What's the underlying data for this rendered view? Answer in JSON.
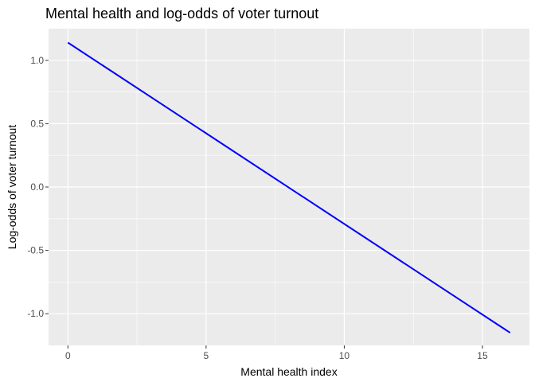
{
  "chart_data": {
    "type": "line",
    "title": "Mental health and log-odds of voter turnout",
    "xlabel": "Mental health index",
    "ylabel": "Log-odds of voter turnout",
    "xlim": [
      -0.7,
      16.7
    ],
    "ylim": [
      -1.25,
      1.25
    ],
    "x_ticks": [
      0,
      5,
      10,
      15
    ],
    "x_tick_labels": [
      "0",
      "5",
      "10",
      "15"
    ],
    "y_ticks": [
      1.0,
      0.5,
      0.0,
      -0.5,
      -1.0
    ],
    "y_tick_labels": [
      "1.0",
      "0.5",
      "0.0",
      "-0.5",
      "-1.0"
    ],
    "grid": true,
    "panel_color": "#ebebeb",
    "grid_color": "#ffffff",
    "series": [
      {
        "color": "#0000ff",
        "x": [
          0,
          16
        ],
        "y": [
          1.14,
          -1.15
        ]
      }
    ]
  }
}
